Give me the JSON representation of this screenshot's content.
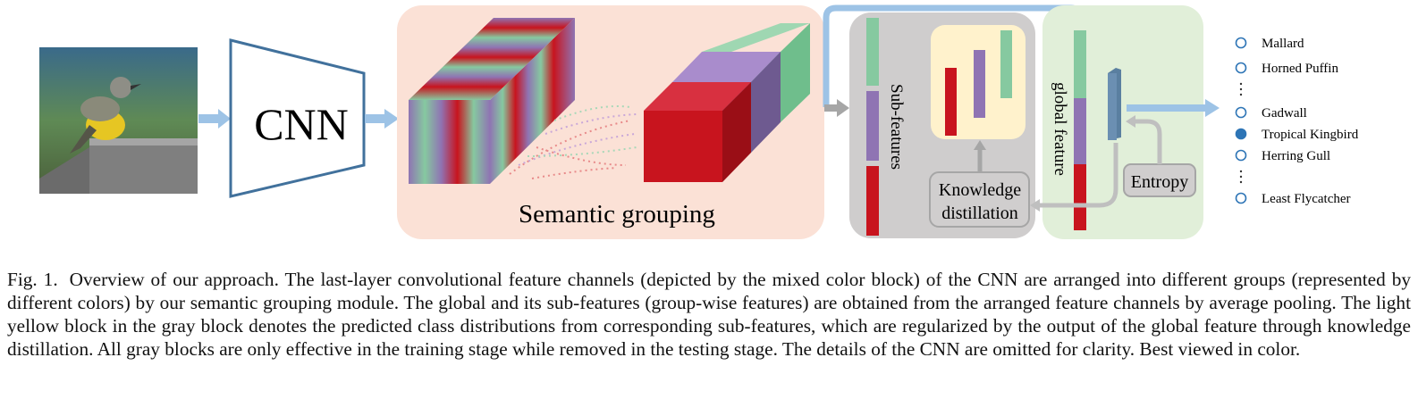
{
  "figure": {
    "cnn_label": "CNN",
    "semantic_grouping_label": "Semantic grouping",
    "sub_features_label": "Sub-features",
    "global_feature_label": "global feature",
    "knowledge_distillation_line1": "Knowledge",
    "knowledge_distillation_line2": "distillation",
    "entropy_label": "Entropy",
    "classes": [
      {
        "name": "Mallard",
        "selected": false
      },
      {
        "name": "Horned Puffin",
        "selected": false
      },
      {
        "name": "Gadwall",
        "selected": false
      },
      {
        "name": "Tropical Kingbird",
        "selected": true
      },
      {
        "name": "Herring Gull",
        "selected": false
      },
      {
        "name": "Least Flycatcher",
        "selected": false
      }
    ],
    "colors": {
      "red": "#c8141e",
      "purple": "#8f74b3",
      "green": "#86c9a0",
      "arrow_blue": "#9dc3e6",
      "cnn_stroke": "#41719c",
      "panel_pink": "#fbe1d6",
      "panel_gray": "#cfcdcd",
      "panel_yellow": "#fff2cc",
      "panel_green": "#e1efd9"
    }
  },
  "caption": {
    "label": "Fig. 1.",
    "text": "Overview of our approach. The last-layer convolutional feature channels (depicted by the mixed color block) of the CNN are arranged into different groups (represented by different colors) by our semantic grouping module. The global and its sub-features (group-wise features) are obtained from the arranged feature channels by average pooling. The light yellow block in the gray block denotes the predicted class distributions from corresponding sub-features, which are regularized by the output of the global feature through knowledge distillation. All gray blocks are only effective in the training stage while removed in the testing stage. The details of the CNN are omitted for clarity. Best viewed in color."
  }
}
